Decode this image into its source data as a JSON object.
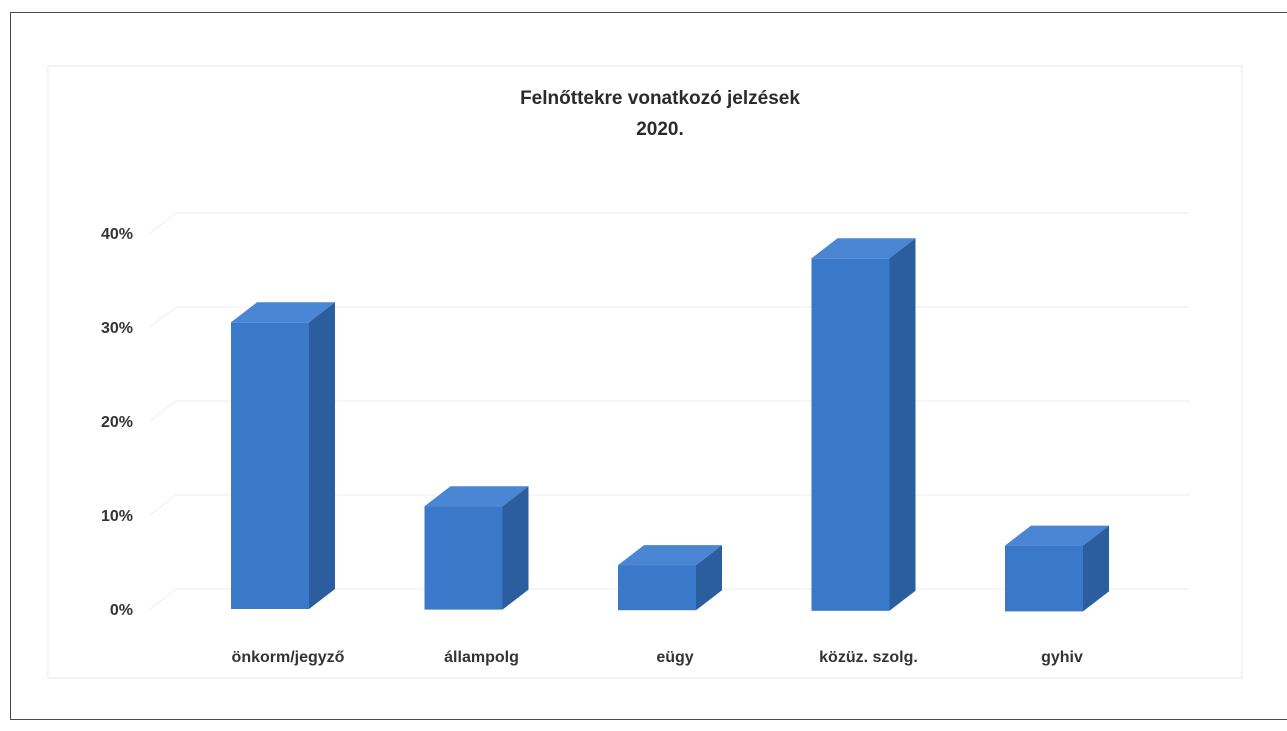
{
  "chart_data": {
    "type": "bar",
    "title": "Felnőttekre vonatkozó jelzések",
    "subtitle": "2020.",
    "categories": [
      "önkorm/jegyző",
      "állampolg",
      "eügy",
      "közüz. szolg.",
      "gyhiv"
    ],
    "values": [
      30.5,
      11,
      4.8,
      37.5,
      7
    ],
    "yticks": [
      "0%",
      "10%",
      "20%",
      "30%",
      "40%"
    ],
    "ylim": [
      0,
      40
    ],
    "grid": true,
    "colors": {
      "front": "#3a78c9",
      "side": "#2b5e9f",
      "top": "#4a86d4"
    }
  }
}
